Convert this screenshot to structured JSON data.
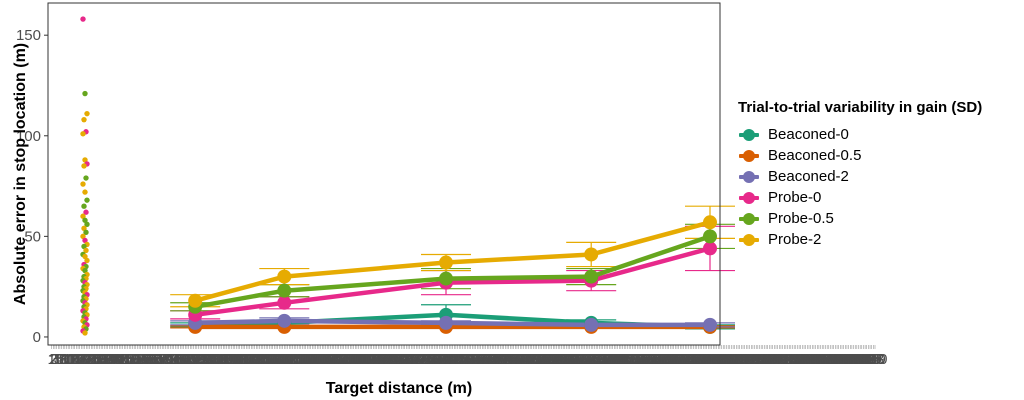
{
  "chart_data": {
    "type": "line",
    "xlabel": "Target distance (m)",
    "ylabel": "Absolute error in stop location (m)",
    "y_ticks": [
      0,
      50,
      100,
      150
    ],
    "ylim": [
      -4,
      166
    ],
    "x_tick_labels": [
      "1",
      "2",
      "3",
      "4",
      "5",
      "6",
      "7",
      "8",
      "9",
      "10",
      "11",
      "12",
      "13",
      "14",
      "15",
      "16",
      "17",
      "18",
      "19",
      "20",
      "21",
      "22",
      "23",
      "24",
      "25",
      "26",
      "27",
      "28",
      "29",
      "30",
      "31",
      "32",
      "33",
      "34",
      "35",
      "36",
      "37",
      "38",
      "39",
      "40",
      "41",
      "42",
      "43",
      "44",
      "45",
      "46",
      "47",
      "48",
      "49",
      "50",
      "51",
      "52",
      "53",
      "54",
      "55",
      "56",
      "57",
      "58",
      "59",
      "60",
      "61",
      "62",
      "63",
      "64",
      "65",
      "66",
      "67",
      "68",
      "69",
      "70",
      "71",
      "72",
      "73",
      "74",
      "75",
      "76",
      "77",
      "78",
      "79",
      "80",
      "81",
      "82",
      "83",
      "84",
      "85",
      "86",
      "87",
      "88",
      "89",
      "90",
      "91",
      "92",
      "93",
      "94",
      "95",
      "96",
      "97",
      "98",
      "99",
      "100",
      "101",
      "102",
      "103",
      "104",
      "105",
      "106",
      "107",
      "108",
      "109",
      "110",
      "111",
      "112",
      "113",
      "114",
      "115",
      "116",
      "117",
      "118",
      "119",
      "120",
      "121",
      "122",
      "123",
      "124",
      "125",
      "126",
      "127",
      "128",
      "129",
      "130",
      "131",
      "132",
      "133",
      "134",
      "135",
      "136",
      "137",
      "138",
      "139",
      "140",
      "141",
      "142",
      "143",
      "144",
      "145",
      "146",
      "147",
      "148",
      "149",
      "150",
      "151",
      "152",
      "153",
      "154",
      "155",
      "156",
      "157",
      "158",
      "159",
      "160",
      "161",
      "162",
      "163",
      "164",
      "165",
      "166",
      "167",
      "168",
      "169",
      "170",
      "171",
      "172",
      "173",
      "174",
      "175",
      "176",
      "177",
      "178",
      "179",
      "180",
      "181",
      "182",
      "183",
      "184",
      "185",
      "186",
      "187",
      "188",
      "189",
      "190",
      "191",
      "192",
      "193",
      "194",
      "195",
      "196",
      "197",
      "198",
      "199",
      "200",
      "201",
      "202",
      "203",
      "204",
      "205",
      "206",
      "207",
      "208",
      "209",
      "210",
      "211",
      "212",
      "213",
      "214",
      "215",
      "216",
      "217",
      "218",
      "219",
      "220",
      "221",
      "222",
      "223",
      "224",
      "225",
      "226",
      "227",
      "228",
      "229",
      "230",
      "231",
      "232",
      "233",
      "234",
      "235",
      "236",
      "237",
      "238",
      "239",
      "240",
      "241",
      "242",
      "243",
      "244",
      "245",
      "246",
      "247",
      "248",
      "249",
      "250",
      "251",
      "252",
      "253",
      "254",
      "255",
      "256",
      "257",
      "258",
      "259",
      "260",
      "261",
      "262",
      "263",
      "264",
      "265",
      "266",
      "267",
      "268",
      "269",
      "270",
      "271",
      "272",
      "273",
      "274",
      "275",
      "276",
      "277",
      "278",
      "279",
      "280",
      "281",
      "282",
      "283",
      "284",
      "285",
      "286",
      "287",
      "288",
      "289",
      "290",
      "291",
      "292",
      "293",
      "294",
      "295",
      "296",
      "297",
      "298",
      "299",
      "300",
      "301",
      "302",
      "303",
      "304",
      "305",
      "306",
      "307",
      "308",
      "309",
      "310",
      "311",
      "312",
      "313",
      "314",
      "315",
      "316",
      "317",
      "318",
      "319",
      "320",
      "321",
      "322",
      "323",
      "324",
      "325",
      "326",
      "327",
      "328",
      "329",
      "330",
      "331",
      "332",
      "333",
      "334",
      "335",
      "336",
      "337",
      "338",
      "339",
      "340",
      "341",
      "342",
      "343",
      "344",
      "345",
      "346",
      "347",
      "348",
      "349",
      "350",
      "351",
      "352",
      "353",
      "354",
      "355",
      "356",
      "357",
      "358",
      "359",
      "360",
      "361",
      "362",
      "363",
      "364",
      "365",
      "366",
      "367",
      "368",
      "369",
      "370",
      "371",
      "372",
      "373",
      "374",
      "375",
      "376",
      "377",
      "378",
      "379",
      "380",
      "381",
      "382",
      "383",
      "384",
      "385",
      "386",
      "387",
      "388",
      "389",
      "390",
      "391",
      "392",
      "393",
      "394",
      "395",
      "396",
      "397",
      "398",
      "399",
      "400",
      "401",
      "402",
      "403",
      "404",
      "405",
      "406",
      "407",
      "408",
      "409",
      "410",
      "411",
      "412",
      "413",
      "414",
      "415",
      "416",
      "417",
      "418",
      "419",
      "420",
      "421",
      "422",
      "423",
      "424",
      "425",
      "426",
      "427",
      "428",
      "429",
      "430",
      "431",
      "432",
      "433",
      "434",
      "435",
      "436",
      "437",
      "438",
      "439",
      "440",
      "441",
      "442",
      "443",
      "444",
      "445",
      "446",
      "447",
      "448",
      "449",
      "450",
      "451",
      "452",
      "453",
      "454",
      "455",
      "456",
      "457",
      "458",
      "459",
      "460",
      "461",
      "462",
      "463",
      "464",
      "465",
      "466",
      "467",
      "468",
      "469",
      "470",
      "471",
      "472",
      "473",
      "474",
      "475",
      "476",
      "477",
      "478",
      "479",
      "480",
      "481",
      "482",
      "483",
      "484",
      "485",
      "486",
      "487",
      "488",
      "489",
      "490",
      "491",
      "492",
      "493",
      "494",
      "495",
      "496",
      "497",
      "498",
      "499",
      "500"
    ],
    "x": [
      88,
      142,
      240,
      328,
      400
    ],
    "series": [
      {
        "name": "Beaconed-0",
        "color": "#1b9e77",
        "values": [
          6,
          7,
          11,
          7,
          5
        ],
        "err": [
          1,
          1.5,
          5,
          1.5,
          1
        ]
      },
      {
        "name": "Beaconed-0.5",
        "color": "#d95f02",
        "values": [
          5,
          5,
          5,
          5,
          5
        ],
        "err": [
          0.5,
          0.5,
          0.5,
          0.5,
          0.5
        ]
      },
      {
        "name": "Beaconed-2",
        "color": "#7570b3",
        "values": [
          7,
          8,
          7,
          6,
          6
        ],
        "err": [
          1,
          1.5,
          1,
          1,
          1
        ]
      },
      {
        "name": "Probe-0",
        "color": "#e7298a",
        "values": [
          11,
          17,
          27,
          28,
          44
        ],
        "err": [
          2,
          3,
          6,
          5,
          11
        ]
      },
      {
        "name": "Probe-0.5",
        "color": "#66a61e",
        "values": [
          15,
          23,
          29,
          30,
          50
        ],
        "err": [
          2,
          3,
          5,
          4,
          6
        ]
      },
      {
        "name": "Probe-2",
        "color": "#e6ab02",
        "values": [
          18,
          30,
          37,
          41,
          57
        ],
        "err": [
          3,
          4,
          4,
          6,
          8
        ]
      }
    ],
    "scatter": [
      {
        "y": 158,
        "s": 3
      },
      {
        "y": 121,
        "s": 4
      },
      {
        "y": 111,
        "s": 5
      },
      {
        "y": 108,
        "s": 5
      },
      {
        "y": 102,
        "s": 3
      },
      {
        "y": 101,
        "s": 5
      },
      {
        "y": 88,
        "s": 5
      },
      {
        "y": 86,
        "s": 3
      },
      {
        "y": 85,
        "s": 5
      },
      {
        "y": 79,
        "s": 4
      },
      {
        "y": 76,
        "s": 5
      },
      {
        "y": 72,
        "s": 5
      },
      {
        "y": 68,
        "s": 4
      },
      {
        "y": 65,
        "s": 4
      },
      {
        "y": 62,
        "s": 3
      },
      {
        "y": 60,
        "s": 5
      },
      {
        "y": 58,
        "s": 4
      },
      {
        "y": 56,
        "s": 4
      },
      {
        "y": 54,
        "s": 5
      },
      {
        "y": 52,
        "s": 4
      },
      {
        "y": 50,
        "s": 5
      },
      {
        "y": 48,
        "s": 3
      },
      {
        "y": 46,
        "s": 5
      },
      {
        "y": 45,
        "s": 4
      },
      {
        "y": 43,
        "s": 5
      },
      {
        "y": 41,
        "s": 4
      },
      {
        "y": 40,
        "s": 5
      },
      {
        "y": 38,
        "s": 5
      },
      {
        "y": 36,
        "s": 3
      },
      {
        "y": 35,
        "s": 4
      },
      {
        "y": 34,
        "s": 5
      },
      {
        "y": 33,
        "s": 4
      },
      {
        "y": 31,
        "s": 5
      },
      {
        "y": 30,
        "s": 4
      },
      {
        "y": 29,
        "s": 5
      },
      {
        "y": 28,
        "s": 4
      },
      {
        "y": 27,
        "s": 3
      },
      {
        "y": 26,
        "s": 5
      },
      {
        "y": 25,
        "s": 4
      },
      {
        "y": 24,
        "s": 5
      },
      {
        "y": 23,
        "s": 4
      },
      {
        "y": 22,
        "s": 5
      },
      {
        "y": 21,
        "s": 3
      },
      {
        "y": 20,
        "s": 4
      },
      {
        "y": 19,
        "s": 5
      },
      {
        "y": 18,
        "s": 4
      },
      {
        "y": 17,
        "s": 3
      },
      {
        "y": 16,
        "s": 5
      },
      {
        "y": 15,
        "s": 4
      },
      {
        "y": 14,
        "s": 5
      },
      {
        "y": 13,
        "s": 3
      },
      {
        "y": 12,
        "s": 4
      },
      {
        "y": 11,
        "s": 5
      },
      {
        "y": 10,
        "s": 4
      },
      {
        "y": 9,
        "s": 3
      },
      {
        "y": 8,
        "s": 5
      },
      {
        "y": 7,
        "s": 4
      },
      {
        "y": 6,
        "s": 3
      },
      {
        "y": 5,
        "s": 5
      },
      {
        "y": 4,
        "s": 4
      },
      {
        "y": 3,
        "s": 3
      },
      {
        "y": 2,
        "s": 5
      }
    ],
    "legend_title": "Trial-to-trial variability in gain (SD)",
    "legend_position": "right",
    "grid": false
  }
}
